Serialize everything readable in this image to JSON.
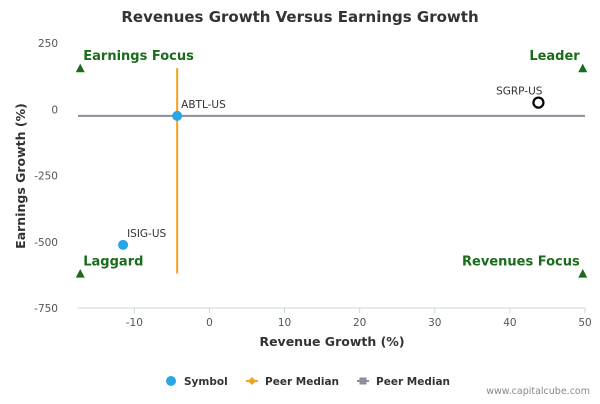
{
  "chart_data": {
    "type": "scatter",
    "title": "Revenues Growth Versus Earnings Growth",
    "xlabel": "Revenue Growth (%)",
    "ylabel": "Earnings Growth (%)",
    "xlim": [
      -17.5,
      50
    ],
    "ylim": [
      -750,
      250
    ],
    "x_ticks": [
      -10,
      0,
      10,
      20,
      30,
      40,
      50
    ],
    "y_ticks": [
      250,
      0,
      -250,
      -500,
      -750
    ],
    "grid": false,
    "points": [
      {
        "label": "ABTL-US",
        "x": -4.3,
        "y": -25,
        "style": "filled",
        "color": "#2aa5e6"
      },
      {
        "label": "ISIG-US",
        "x": -11.5,
        "y": -512,
        "style": "filled",
        "color": "#2aa5e6"
      },
      {
        "label": "SGRP-US",
        "x": 43.8,
        "y": 25,
        "style": "hollow",
        "color": "#000000"
      }
    ],
    "peer_median": {
      "x": -4.3,
      "y": -25,
      "x_line_range": [
        -17.5,
        50
      ],
      "y_line_range": [
        -620,
        155
      ]
    },
    "quadrants": {
      "top_left": "Earnings Focus",
      "top_right": "Leader",
      "bottom_left": "Laggard",
      "bottom_right": "Revenues Focus",
      "marker_positions": [
        {
          "x": -17.2,
          "y": 155
        },
        {
          "x": 49.7,
          "y": 155
        },
        {
          "x": -17.2,
          "y": -620
        },
        {
          "x": 49.7,
          "y": -620
        }
      ]
    },
    "legend": {
      "placement": "bottom",
      "items": [
        {
          "name": "Symbol",
          "marker": "circle",
          "color": "#2aa5e6"
        },
        {
          "name": "Peer Median",
          "marker": "line-diamond",
          "color": "#f4a31f"
        },
        {
          "name": "Peer Median",
          "marker": "line-square",
          "color": "#8a8d9a"
        }
      ]
    },
    "watermark": "www.capitalcube.com",
    "colors": {
      "quadrant_text": "#1a6b1a",
      "quadrant_marker": "#1a6b1a",
      "peer_median_vertical": "#f4a31f",
      "peer_median_horizontal": "#8a8d9a",
      "axis_line": "#c8d8e0",
      "tick_text": "#555555",
      "label_text": "#333333"
    }
  }
}
